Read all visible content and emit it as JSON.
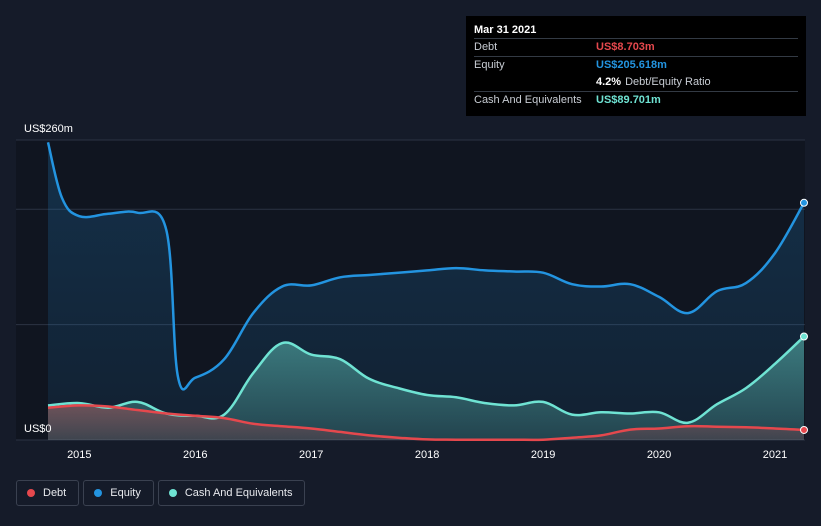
{
  "colors": {
    "debt": "#e5484d",
    "equity": "#2394e0",
    "cash": "#6fe3d3",
    "background": "#151b29",
    "plot_background": "#101520",
    "grid": "#2b3343"
  },
  "tooltip": {
    "date": "Mar 31 2021",
    "rows": [
      {
        "name": "Debt",
        "value": "US$8.703m",
        "color": "#e5484d"
      },
      {
        "name": "Equity",
        "value": "US$205.618m",
        "color": "#2394e0"
      }
    ],
    "ratio_value": "4.2%",
    "ratio_label": "Debt/Equity Ratio",
    "cash_row": {
      "name": "Cash And Equivalents",
      "value": "US$89.701m",
      "color": "#6fe3d3"
    }
  },
  "legend": [
    {
      "label": "Debt",
      "color": "#e5484d"
    },
    {
      "label": "Equity",
      "color": "#2394e0"
    },
    {
      "label": "Cash And Equivalents",
      "color": "#6fe3d3"
    }
  ],
  "chart_data": {
    "type": "area",
    "title": "",
    "xlabel": "",
    "ylabel": "",
    "y_top_label": "US$260m",
    "y_bottom_label": "US$0",
    "ylim": [
      0,
      260
    ],
    "xlim": [
      2014.73,
      2021.25
    ],
    "x_ticks": [
      "2015",
      "2016",
      "2017",
      "2018",
      "2019",
      "2020",
      "2021"
    ],
    "x_tick_values": [
      2015,
      2016,
      2017,
      2018,
      2019,
      2020,
      2021
    ],
    "grid": true,
    "legend_position": "bottom-left",
    "series": [
      {
        "name": "Debt",
        "x": [
          2014.73,
          2015.0,
          2015.25,
          2015.5,
          2015.75,
          2016.0,
          2016.25,
          2016.5,
          2016.75,
          2017.0,
          2017.25,
          2017.5,
          2017.75,
          2018.0,
          2018.25,
          2018.5,
          2018.75,
          2019.0,
          2019.25,
          2019.5,
          2019.75,
          2020.0,
          2020.25,
          2020.5,
          2020.75,
          2021.0,
          2021.25
        ],
        "values": [
          28,
          30,
          29,
          26,
          23,
          21,
          19,
          14,
          12,
          10,
          7,
          4,
          2,
          0.5,
          0.3,
          0.3,
          0.3,
          0.3,
          2,
          4,
          9,
          10,
          12,
          11.5,
          11,
          10,
          8.7
        ]
      },
      {
        "name": "Equity",
        "x": [
          2014.73,
          2014.85,
          2015.0,
          2015.25,
          2015.5,
          2015.75,
          2015.85,
          2016.0,
          2016.25,
          2016.5,
          2016.75,
          2017.0,
          2017.25,
          2017.5,
          2017.75,
          2018.0,
          2018.25,
          2018.5,
          2018.75,
          2019.0,
          2019.25,
          2019.5,
          2019.75,
          2020.0,
          2020.25,
          2020.5,
          2020.75,
          2021.0,
          2021.25
        ],
        "values": [
          258,
          210,
          194,
          196,
          197,
          182,
          55,
          54,
          70,
          110,
          133,
          134,
          141,
          143,
          145,
          147,
          149,
          147,
          146,
          145,
          135,
          133,
          135,
          124,
          110,
          129,
          136,
          162,
          205.6
        ]
      },
      {
        "name": "Cash And Equivalents",
        "x": [
          2014.73,
          2015.0,
          2015.25,
          2015.5,
          2015.75,
          2016.0,
          2016.25,
          2016.5,
          2016.75,
          2017.0,
          2017.25,
          2017.5,
          2017.75,
          2018.0,
          2018.25,
          2018.5,
          2018.75,
          2019.0,
          2019.25,
          2019.5,
          2019.75,
          2020.0,
          2020.25,
          2020.5,
          2020.75,
          2021.0,
          2021.25
        ],
        "values": [
          30,
          32,
          28,
          33,
          23,
          21,
          22,
          58,
          84,
          74,
          70,
          53,
          45,
          39,
          37,
          32,
          30,
          33,
          22,
          24,
          23,
          24,
          15,
          31,
          45,
          66,
          89.7
        ]
      }
    ]
  }
}
